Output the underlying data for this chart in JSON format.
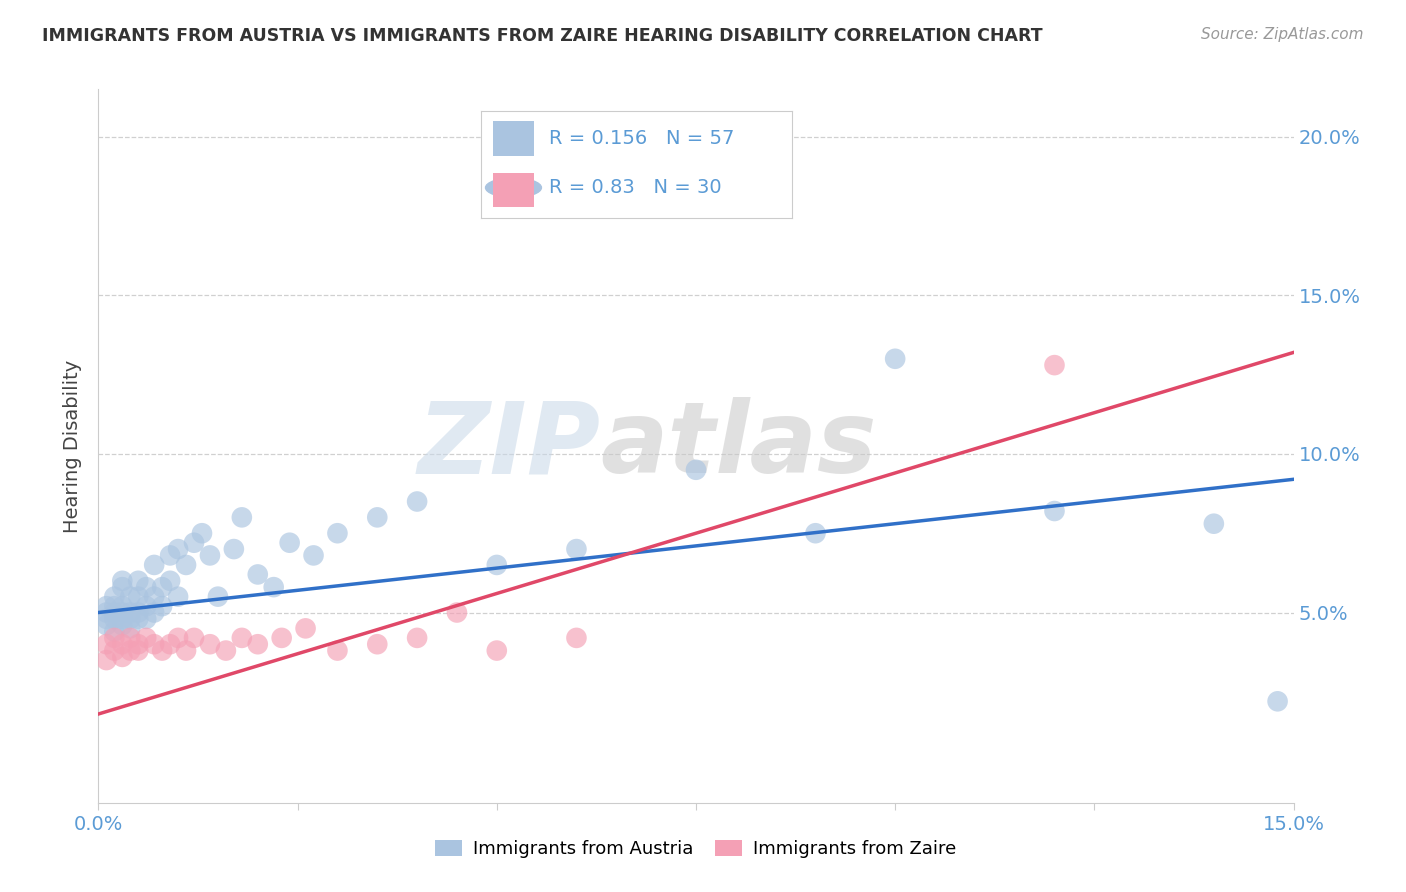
{
  "title": "IMMIGRANTS FROM AUSTRIA VS IMMIGRANTS FROM ZAIRE HEARING DISABILITY CORRELATION CHART",
  "source": "Source: ZipAtlas.com",
  "ylabel": "Hearing Disability",
  "legend_label_blue": "Immigrants from Austria",
  "legend_label_pink": "Immigrants from Zaire",
  "R_blue": 0.156,
  "N_blue": 57,
  "R_pink": 0.83,
  "N_pink": 30,
  "xlim": [
    0.0,
    0.15
  ],
  "ylim": [
    -0.01,
    0.215
  ],
  "yticks": [
    0.05,
    0.1,
    0.15,
    0.2
  ],
  "color_blue": "#aac4e0",
  "color_pink": "#f4a0b5",
  "line_color_blue": "#3070c8",
  "line_color_pink": "#e04868",
  "background_color": "#ffffff",
  "watermark_zip": "ZIP",
  "watermark_atlas": "atlas",
  "blue_line_start": 0.05,
  "blue_line_end": 0.092,
  "pink_line_start": 0.018,
  "pink_line_end": 0.132,
  "austria_x": [
    0.001,
    0.001,
    0.001,
    0.001,
    0.002,
    0.002,
    0.002,
    0.002,
    0.002,
    0.003,
    0.003,
    0.003,
    0.003,
    0.003,
    0.003,
    0.004,
    0.004,
    0.004,
    0.004,
    0.005,
    0.005,
    0.005,
    0.005,
    0.006,
    0.006,
    0.006,
    0.007,
    0.007,
    0.007,
    0.008,
    0.008,
    0.009,
    0.009,
    0.01,
    0.01,
    0.011,
    0.012,
    0.013,
    0.014,
    0.015,
    0.017,
    0.018,
    0.02,
    0.022,
    0.024,
    0.027,
    0.03,
    0.035,
    0.04,
    0.05,
    0.06,
    0.075,
    0.09,
    0.1,
    0.12,
    0.14,
    0.148
  ],
  "austria_y": [
    0.05,
    0.048,
    0.052,
    0.046,
    0.055,
    0.05,
    0.048,
    0.052,
    0.044,
    0.058,
    0.05,
    0.048,
    0.046,
    0.052,
    0.06,
    0.045,
    0.055,
    0.05,
    0.048,
    0.06,
    0.05,
    0.048,
    0.055,
    0.052,
    0.058,
    0.048,
    0.055,
    0.05,
    0.065,
    0.052,
    0.058,
    0.06,
    0.068,
    0.055,
    0.07,
    0.065,
    0.072,
    0.075,
    0.068,
    0.055,
    0.07,
    0.08,
    0.062,
    0.058,
    0.072,
    0.068,
    0.075,
    0.08,
    0.085,
    0.065,
    0.07,
    0.095,
    0.075,
    0.13,
    0.082,
    0.078,
    0.022
  ],
  "zaire_x": [
    0.001,
    0.001,
    0.002,
    0.002,
    0.003,
    0.003,
    0.004,
    0.004,
    0.005,
    0.005,
    0.006,
    0.007,
    0.008,
    0.009,
    0.01,
    0.011,
    0.012,
    0.014,
    0.016,
    0.018,
    0.02,
    0.023,
    0.026,
    0.03,
    0.035,
    0.04,
    0.045,
    0.05,
    0.06,
    0.12
  ],
  "zaire_y": [
    0.04,
    0.035,
    0.042,
    0.038,
    0.036,
    0.04,
    0.038,
    0.042,
    0.04,
    0.038,
    0.042,
    0.04,
    0.038,
    0.04,
    0.042,
    0.038,
    0.042,
    0.04,
    0.038,
    0.042,
    0.04,
    0.042,
    0.045,
    0.038,
    0.04,
    0.042,
    0.05,
    0.038,
    0.042,
    0.128
  ]
}
